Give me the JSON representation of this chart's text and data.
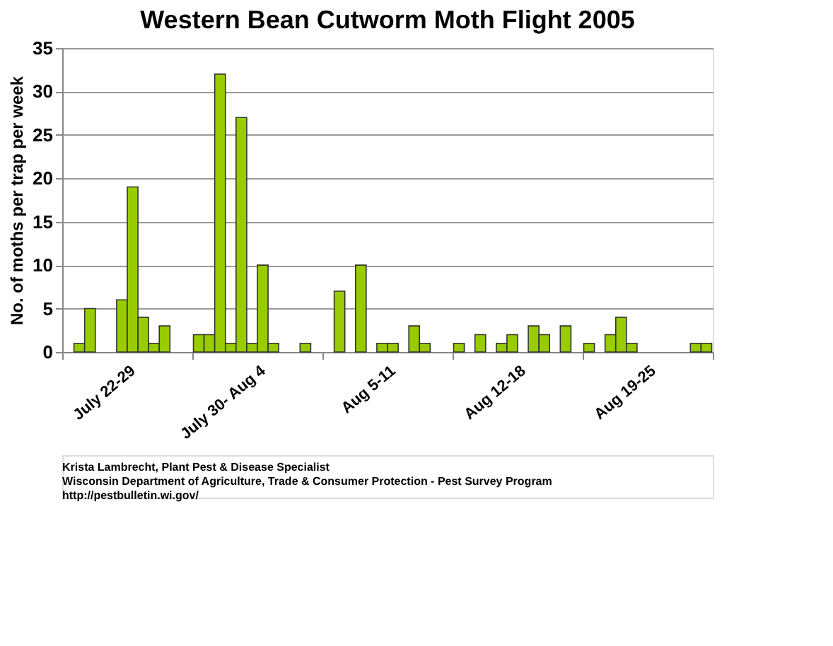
{
  "chart_data": {
    "type": "bar",
    "title": "Western Bean Cutworm Moth Flight 2005",
    "ylabel": "No. of moths per trap per week",
    "categories": [
      "July 22-29",
      "July 30- Aug 4",
      "Aug 5-11",
      "Aug 12-18",
      "Aug 19-25"
    ],
    "series": [
      {
        "color": "#99cc00",
        "values": [
          null,
          2,
          null,
          1,
          1
        ]
      },
      {
        "color": "#99cc00",
        "values": [
          1,
          2,
          7,
          null,
          null
        ]
      },
      {
        "color": "#99cc00",
        "values": [
          5,
          32,
          null,
          2,
          2
        ]
      },
      {
        "color": "#99cc00",
        "values": [
          null,
          1,
          10,
          null,
          4
        ]
      },
      {
        "color": "#99cc00",
        "values": [
          null,
          27,
          null,
          1,
          1
        ]
      },
      {
        "color": "#99cc00",
        "values": [
          6,
          1,
          1,
          2,
          null
        ]
      },
      {
        "color": "#99cc00",
        "values": [
          19,
          10,
          1,
          null,
          null
        ]
      },
      {
        "color": "#99cc00",
        "values": [
          4,
          1,
          null,
          3,
          null
        ]
      },
      {
        "color": "#99cc00",
        "values": [
          1,
          null,
          3,
          2,
          null
        ]
      },
      {
        "color": "#99cc00",
        "values": [
          3,
          null,
          1,
          null,
          null
        ]
      },
      {
        "color": "#99cc00",
        "values": [
          null,
          1,
          null,
          3,
          1
        ]
      },
      {
        "color": "#99cc00",
        "values": [
          null,
          null,
          null,
          null,
          1
        ]
      }
    ],
    "ylim": [
      0,
      35
    ],
    "yticks": [
      0,
      5,
      10,
      15,
      20,
      25,
      30,
      35
    ],
    "grid": "y",
    "legend": false,
    "annotations": [
      "Krista Lambrecht, Plant Pest & Disease Specialist",
      "Wisconsin Department of Agriculture, Trade & Consumer Protection - Pest Survey Program",
      "http://pestbulletin.wi.gov/"
    ]
  }
}
